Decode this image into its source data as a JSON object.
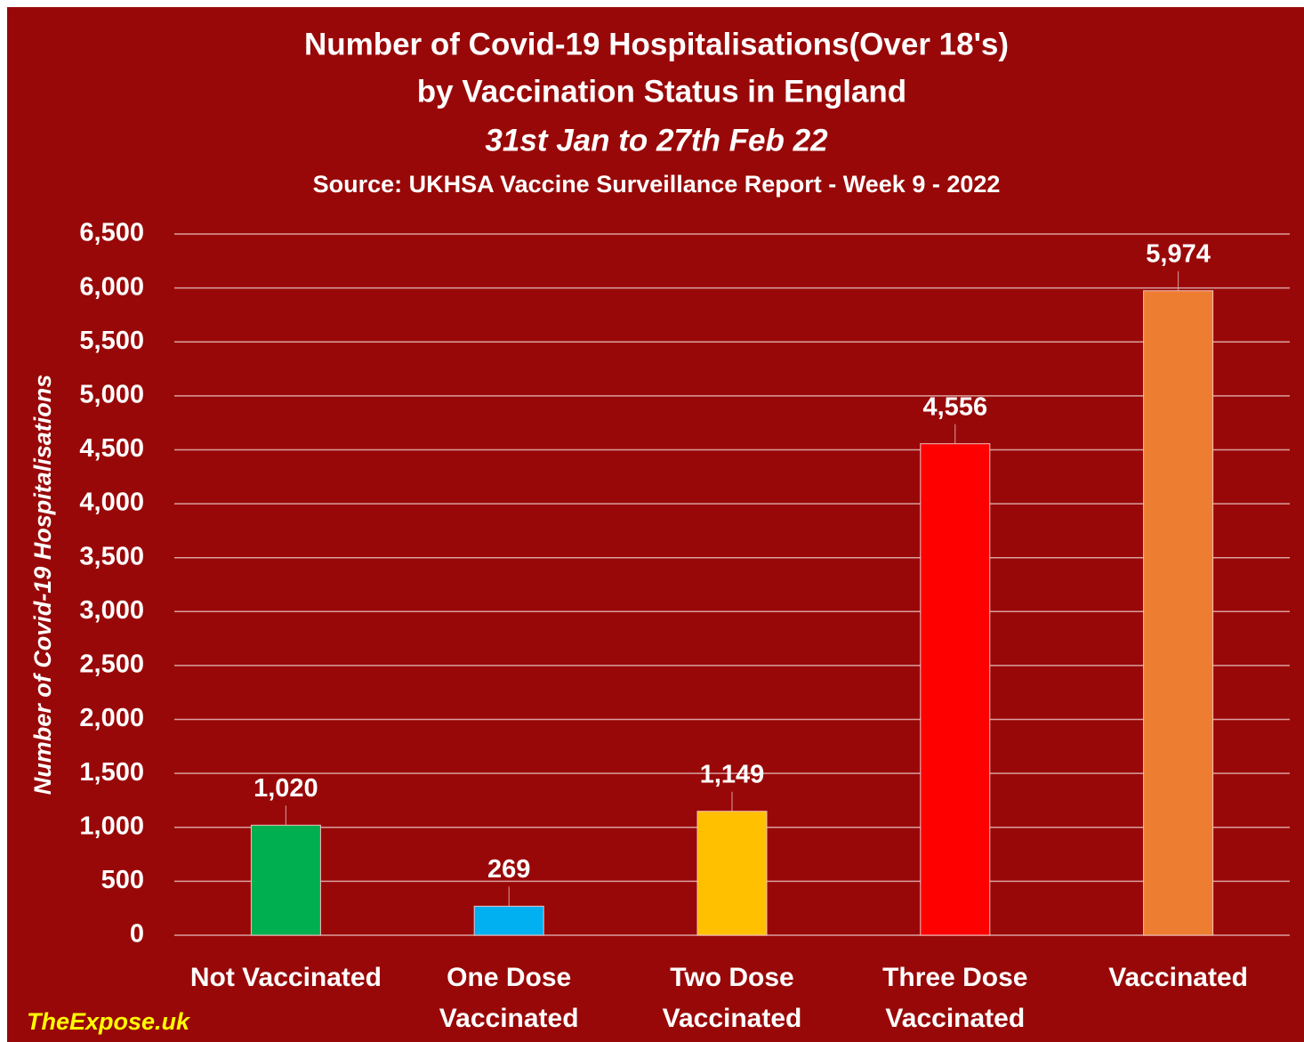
{
  "chart_data": {
    "type": "bar",
    "title": [
      "Number of Covid-19 Hospitalisations(Over 18's)",
      "by Vaccination Status in England"
    ],
    "subtitle": "31st Jan to 27th Feb 22",
    "source": "Source: UKHSA Vaccine Surveillance Report - Week 9 - 2022",
    "y_label": "Number of Covid-19 Hospitalisations",
    "watermark": "TheExpose.uk",
    "categories": [
      "Not Vaccinated",
      "One Dose Vaccinated",
      "Two Dose Vaccinated",
      "Three Dose Vaccinated",
      "Vaccinated"
    ],
    "values": [
      1020,
      269,
      1149,
      4556,
      5974
    ],
    "value_labels": [
      "1,020",
      "269",
      "1,149",
      "4,556",
      "5,974"
    ],
    "colors": [
      "#00b050",
      "#00b0f0",
      "#ffc000",
      "#ff0000",
      "#ed7d31"
    ],
    "ylim": [
      0,
      6500
    ],
    "yticks": [
      0,
      500,
      {
        "value": 1000,
        "label": "1,000"
      },
      {
        "value": 1500,
        "label": "1,500"
      },
      {
        "value": 2000,
        "label": "2,000"
      },
      {
        "value": 2500,
        "label": "2,500"
      },
      {
        "value": 3000,
        "label": "3,000"
      },
      {
        "value": 3500,
        "label": "3,500"
      },
      {
        "value": 4000,
        "label": "4,000"
      },
      {
        "value": 4500,
        "label": "4,500"
      },
      {
        "value": 5000,
        "label": "5,000"
      },
      {
        "value": 5500,
        "label": "5,500"
      },
      {
        "value": 6000,
        "label": "6,000"
      },
      {
        "value": 6500,
        "label": "6,500"
      }
    ],
    "grid": true
  }
}
